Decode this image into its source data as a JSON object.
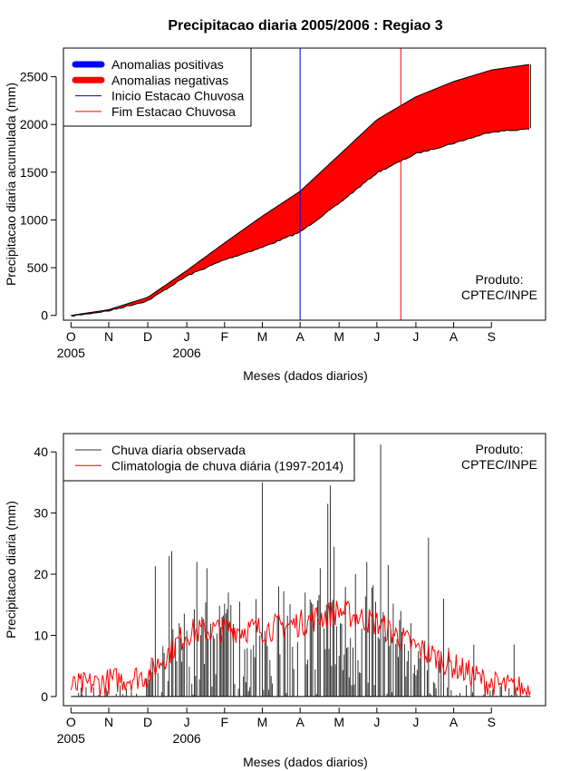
{
  "title": "Precipitacao diaria 2005/2006 : Regiao 3",
  "colors": {
    "positive": "#0000ff",
    "negative": "#ff0000",
    "observed": "#333333",
    "climatology": "#ff0000",
    "season_start": "#0000cc",
    "season_end": "#ff0000"
  },
  "chart_data": [
    {
      "type": "area",
      "name": "accumulated",
      "ylabel": "Precipitacao diaria acumulada (mm)",
      "xlabel": "Meses (dados diarios)",
      "ylim": [
        -50,
        2800
      ],
      "y_ticks": [
        0,
        500,
        1000,
        1500,
        2000,
        2500
      ],
      "y_tick_labels": [
        "0",
        "500",
        "1000",
        "1500",
        "2000",
        "2500"
      ],
      "x_ticks": [
        "O",
        "N",
        "D",
        "J",
        "F",
        "M",
        "A",
        "M",
        "J",
        "J",
        "A",
        "S"
      ],
      "year_labels": [
        "2005",
        "2006"
      ],
      "x_days": [
        0,
        30,
        61,
        92,
        122,
        152,
        182,
        213,
        243,
        274,
        304,
        334,
        365
      ],
      "climatology_accum": [
        0,
        60,
        190,
        470,
        760,
        1040,
        1300,
        1680,
        2050,
        2290,
        2450,
        2570,
        2630
      ],
      "observed_accum": [
        0,
        55,
        160,
        420,
        590,
        720,
        880,
        1180,
        1500,
        1700,
        1810,
        1930,
        1960
      ],
      "season_start_day": 182,
      "season_end_day": 262,
      "legend": [
        {
          "label": "Anomalias positivas",
          "kind": "thick",
          "color_key": "positive"
        },
        {
          "label": "Anomalias negativas",
          "kind": "thick",
          "color_key": "negative"
        },
        {
          "label": "Inicio Estacao Chuvosa",
          "kind": "thin",
          "color_key": "season_start"
        },
        {
          "label": "Fim Estacao Chuvosa",
          "kind": "thin",
          "color_key": "season_end"
        }
      ],
      "product_label": [
        "Produto:",
        "CPTEC/INPE"
      ]
    },
    {
      "type": "line",
      "name": "daily",
      "ylabel": "Precipitacao diaria (mm)",
      "xlabel": "Meses (dados diarios)",
      "ylim": [
        -1.5,
        43
      ],
      "y_ticks": [
        0,
        10,
        20,
        30,
        40
      ],
      "y_tick_labels": [
        "0",
        "10",
        "20",
        "30",
        "40"
      ],
      "x_ticks": [
        "O",
        "N",
        "D",
        "J",
        "F",
        "M",
        "A",
        "M",
        "J",
        "J",
        "A",
        "S"
      ],
      "year_labels": [
        "2005",
        "2006"
      ],
      "x_days": [
        0,
        30,
        61,
        92,
        122,
        152,
        182,
        213,
        243,
        274,
        304,
        334,
        365
      ],
      "climatology_curve": [
        1.5,
        2.5,
        3.5,
        10.5,
        11,
        11,
        12,
        14,
        12,
        8,
        5,
        2,
        1
      ],
      "observed_peaks": [
        {
          "day": 67,
          "value": 21.3
        },
        {
          "day": 78,
          "value": 23
        },
        {
          "day": 80,
          "value": 23.8
        },
        {
          "day": 100,
          "value": 22
        },
        {
          "day": 108,
          "value": 21
        },
        {
          "day": 125,
          "value": 17
        },
        {
          "day": 152,
          "value": 35
        },
        {
          "day": 165,
          "value": 18
        },
        {
          "day": 186,
          "value": 17
        },
        {
          "day": 198,
          "value": 21
        },
        {
          "day": 204,
          "value": 31.5
        },
        {
          "day": 206,
          "value": 34.5
        },
        {
          "day": 209,
          "value": 24.5
        },
        {
          "day": 226,
          "value": 20
        },
        {
          "day": 235,
          "value": 22
        },
        {
          "day": 246,
          "value": 41.2
        },
        {
          "day": 252,
          "value": 21.5
        },
        {
          "day": 270,
          "value": 12
        },
        {
          "day": 284,
          "value": 26
        },
        {
          "day": 296,
          "value": 16
        },
        {
          "day": 320,
          "value": 8.5
        },
        {
          "day": 352,
          "value": 8.5
        }
      ],
      "legend": [
        {
          "label": "Chuva diaria observada",
          "kind": "thin",
          "color_key": "observed"
        },
        {
          "label": "Climatologia de chuva diária (1997-2014)",
          "kind": "thin",
          "color_key": "climatology"
        }
      ],
      "product_label": [
        "Produto:",
        "CPTEC/INPE"
      ]
    }
  ]
}
